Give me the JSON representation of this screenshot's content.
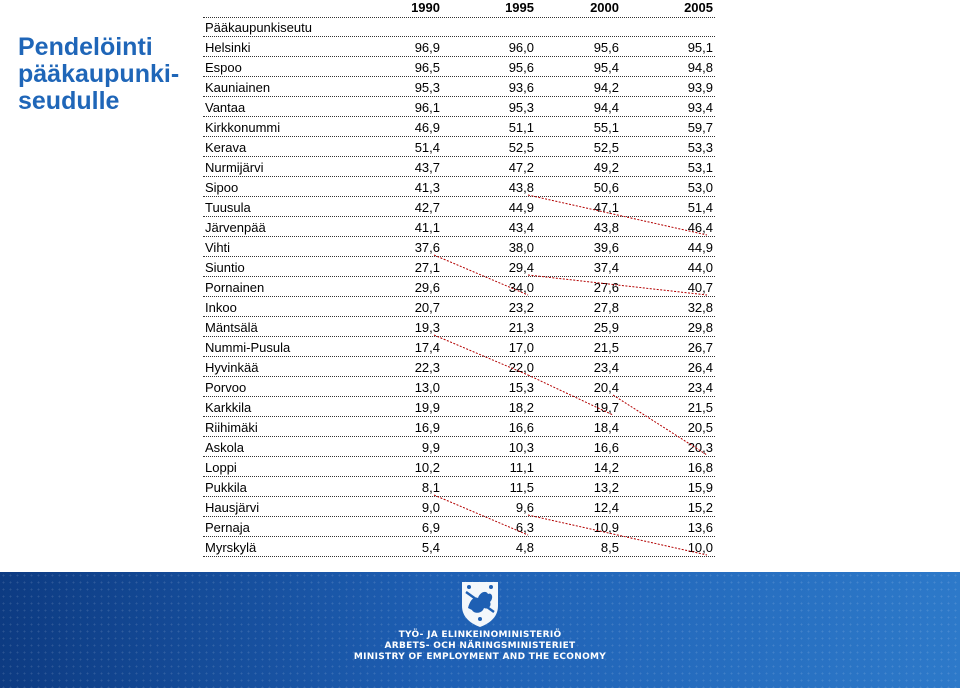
{
  "title_lines": [
    "Pendelöinti",
    "pääkaupunki-",
    "seudulle"
  ],
  "years": [
    "1990",
    "1995",
    "2000",
    "2005"
  ],
  "region_label": "Pääkaupunkiseutu",
  "rows": [
    {
      "name": "Helsinki",
      "v": [
        "96,9",
        "96,0",
        "95,6",
        "95,1"
      ]
    },
    {
      "name": "Espoo",
      "v": [
        "96,5",
        "95,6",
        "95,4",
        "94,8"
      ]
    },
    {
      "name": "Kauniainen",
      "v": [
        "95,3",
        "93,6",
        "94,2",
        "93,9"
      ]
    },
    {
      "name": "Vantaa",
      "v": [
        "96,1",
        "95,3",
        "94,4",
        "93,4"
      ]
    },
    {
      "name": "Kirkkonummi",
      "v": [
        "46,9",
        "51,1",
        "55,1",
        "59,7"
      ]
    },
    {
      "name": "Kerava",
      "v": [
        "51,4",
        "52,5",
        "52,5",
        "53,3"
      ]
    },
    {
      "name": "Nurmijärvi",
      "v": [
        "43,7",
        "47,2",
        "49,2",
        "53,1"
      ]
    },
    {
      "name": "Sipoo",
      "v": [
        "41,3",
        "43,8",
        "50,6",
        "53,0"
      ]
    },
    {
      "name": "Tuusula",
      "v": [
        "42,7",
        "44,9",
        "47,1",
        "51,4"
      ]
    },
    {
      "name": "Järvenpää",
      "v": [
        "41,1",
        "43,4",
        "43,8",
        "46,4"
      ]
    },
    {
      "name": "Vihti",
      "v": [
        "37,6",
        "38,0",
        "39,6",
        "44,9"
      ]
    },
    {
      "name": "Siuntio",
      "v": [
        "27,1",
        "29,4",
        "37,4",
        "44,0"
      ]
    },
    {
      "name": "Pornainen",
      "v": [
        "29,6",
        "34,0",
        "27,6",
        "40,7"
      ]
    },
    {
      "name": "Inkoo",
      "v": [
        "20,7",
        "23,2",
        "27,8",
        "32,8"
      ]
    },
    {
      "name": "Mäntsälä",
      "v": [
        "19,3",
        "21,3",
        "25,9",
        "29,8"
      ]
    },
    {
      "name": "Nummi-Pusula",
      "v": [
        "17,4",
        "17,0",
        "21,5",
        "26,7"
      ]
    },
    {
      "name": "Hyvinkää",
      "v": [
        "22,3",
        "22,0",
        "23,4",
        "26,4"
      ]
    },
    {
      "name": "Porvoo",
      "v": [
        "13,0",
        "15,3",
        "20,4",
        "23,4"
      ]
    },
    {
      "name": "Karkkila",
      "v": [
        "19,9",
        "18,2",
        "19,7",
        "21,5"
      ]
    },
    {
      "name": "Riihimäki",
      "v": [
        "16,9",
        "16,6",
        "18,4",
        "20,5"
      ]
    },
    {
      "name": "Askola",
      "v": [
        "9,9",
        "10,3",
        "16,6",
        "20,3"
      ]
    },
    {
      "name": "Loppi",
      "v": [
        "10,2",
        "11,1",
        "14,2",
        "16,8"
      ]
    },
    {
      "name": "Pukkila",
      "v": [
        "8,1",
        "11,5",
        "13,2",
        "15,9"
      ]
    },
    {
      "name": "Hausjärvi",
      "v": [
        "9,0",
        "9,6",
        "12,4",
        "15,2"
      ]
    },
    {
      "name": "Pernaja",
      "v": [
        "6,9",
        "6,3",
        "10,9",
        "13,6"
      ]
    },
    {
      "name": "Myrskylä",
      "v": [
        "5,4",
        "4,8",
        "8,5",
        "10,0"
      ]
    }
  ],
  "rank_links": [
    {
      "from_row": 7,
      "from_col": 1,
      "to_row": 9,
      "to_col": 3
    },
    {
      "from_row": 10,
      "from_col": 0,
      "to_row": 12,
      "to_col": 1
    },
    {
      "from_row": 11,
      "from_col": 1,
      "to_row": 12,
      "to_col": 3
    },
    {
      "from_row": 14,
      "from_col": 0,
      "to_row": 16,
      "to_col": 1
    },
    {
      "from_row": 16,
      "from_col": 1,
      "to_row": 18,
      "to_col": 2
    },
    {
      "from_row": 17,
      "from_col": 2,
      "to_row": 20,
      "to_col": 3
    },
    {
      "from_row": 22,
      "from_col": 0,
      "to_row": 24,
      "to_col": 1
    },
    {
      "from_row": 23,
      "from_col": 1,
      "to_row": 25,
      "to_col": 3
    }
  ],
  "link_color": "#b30000",
  "footer": {
    "ministry_fi": "TYÖ- JA ELINKEINOMINISTERIÖ",
    "ministry_sv": "ARBETS- OCH NÄRINGSMINISTERIET",
    "ministry_en": "MINISTRY OF EMPLOYMENT AND THE ECONOMY",
    "crest_icon": "finnish-lion-crest-icon"
  }
}
